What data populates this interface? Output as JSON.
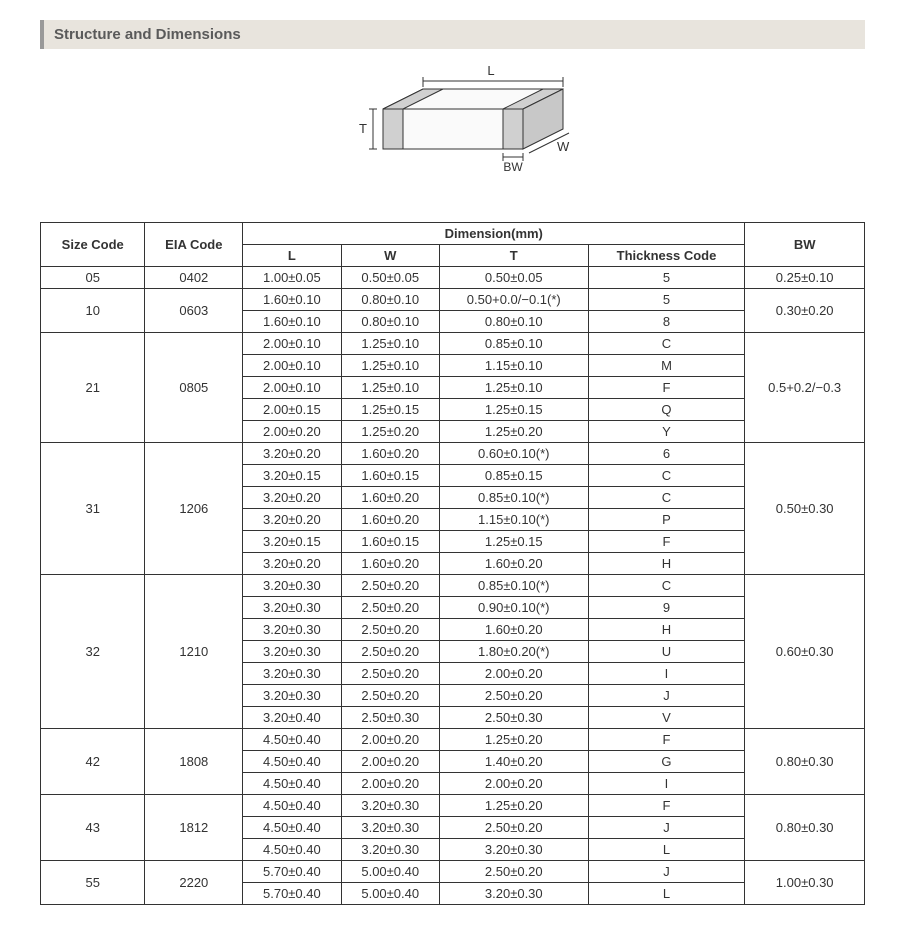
{
  "title": "Structure and Dimensions",
  "diagram": {
    "labels": {
      "L": "L",
      "W": "W",
      "T": "T",
      "BW": "BW"
    },
    "stroke": "#333333",
    "fill": "#fafafa",
    "terminal_fill": "#d0d0d0"
  },
  "table": {
    "header": {
      "size_code": "Size Code",
      "eia_code": "EIA Code",
      "dimension": "Dimension(mm)",
      "L": "L",
      "W": "W",
      "T": "T",
      "thickness_code": "Thickness Code",
      "BW": "BW"
    },
    "groups": [
      {
        "size_code": "05",
        "eia_code": "0402",
        "bw": "0.25±0.10",
        "rows": [
          {
            "L": "1.00±0.05",
            "W": "0.50±0.05",
            "T": "0.50±0.05",
            "tc": "5"
          }
        ]
      },
      {
        "size_code": "10",
        "eia_code": "0603",
        "bw": "0.30±0.20",
        "rows": [
          {
            "L": "1.60±0.10",
            "W": "0.80±0.10",
            "T": "0.50+0.0/−0.1(*)",
            "tc": "5"
          },
          {
            "L": "1.60±0.10",
            "W": "0.80±0.10",
            "T": "0.80±0.10",
            "tc": "8"
          }
        ]
      },
      {
        "size_code": "21",
        "eia_code": "0805",
        "bw": "0.5+0.2/−0.3",
        "rows": [
          {
            "L": "2.00±0.10",
            "W": "1.25±0.10",
            "T": "0.85±0.10",
            "tc": "C"
          },
          {
            "L": "2.00±0.10",
            "W": "1.25±0.10",
            "T": "1.15±0.10",
            "tc": "M"
          },
          {
            "L": "2.00±0.10",
            "W": "1.25±0.10",
            "T": "1.25±0.10",
            "tc": "F"
          },
          {
            "L": "2.00±0.15",
            "W": "1.25±0.15",
            "T": "1.25±0.15",
            "tc": "Q"
          },
          {
            "L": "2.00±0.20",
            "W": "1.25±0.20",
            "T": "1.25±0.20",
            "tc": "Y"
          }
        ]
      },
      {
        "size_code": "31",
        "eia_code": "1206",
        "bw": "0.50±0.30",
        "rows": [
          {
            "L": "3.20±0.20",
            "W": "1.60±0.20",
            "T": "0.60±0.10(*)",
            "tc": "6"
          },
          {
            "L": "3.20±0.15",
            "W": "1.60±0.15",
            "T": "0.85±0.15",
            "tc": "C"
          },
          {
            "L": "3.20±0.20",
            "W": "1.60±0.20",
            "T": "0.85±0.10(*)",
            "tc": "C"
          },
          {
            "L": "3.20±0.20",
            "W": "1.60±0.20",
            "T": "1.15±0.10(*)",
            "tc": "P"
          },
          {
            "L": "3.20±0.15",
            "W": "1.60±0.15",
            "T": "1.25±0.15",
            "tc": "F"
          },
          {
            "L": "3.20±0.20",
            "W": "1.60±0.20",
            "T": "1.60±0.20",
            "tc": "H"
          }
        ]
      },
      {
        "size_code": "32",
        "eia_code": "1210",
        "bw": "0.60±0.30",
        "rows": [
          {
            "L": "3.20±0.30",
            "W": "2.50±0.20",
            "T": "0.85±0.10(*)",
            "tc": "C"
          },
          {
            "L": "3.20±0.30",
            "W": "2.50±0.20",
            "T": "0.90±0.10(*)",
            "tc": "9"
          },
          {
            "L": "3.20±0.30",
            "W": "2.50±0.20",
            "T": "1.60±0.20",
            "tc": "H"
          },
          {
            "L": "3.20±0.30",
            "W": "2.50±0.20",
            "T": "1.80±0.20(*)",
            "tc": "U"
          },
          {
            "L": "3.20±0.30",
            "W": "2.50±0.20",
            "T": "2.00±0.20",
            "tc": "I"
          },
          {
            "L": "3.20±0.30",
            "W": "2.50±0.20",
            "T": "2.50±0.20",
            "tc": "J"
          },
          {
            "L": "3.20±0.40",
            "W": "2.50±0.30",
            "T": "2.50±0.30",
            "tc": "V"
          }
        ]
      },
      {
        "size_code": "42",
        "eia_code": "1808",
        "bw": "0.80±0.30",
        "rows": [
          {
            "L": "4.50±0.40",
            "W": "2.00±0.20",
            "T": "1.25±0.20",
            "tc": "F"
          },
          {
            "L": "4.50±0.40",
            "W": "2.00±0.20",
            "T": "1.40±0.20",
            "tc": "G"
          },
          {
            "L": "4.50±0.40",
            "W": "2.00±0.20",
            "T": "2.00±0.20",
            "tc": "I"
          }
        ]
      },
      {
        "size_code": "43",
        "eia_code": "1812",
        "bw": "0.80±0.30",
        "rows": [
          {
            "L": "4.50±0.40",
            "W": "3.20±0.30",
            "T": "1.25±0.20",
            "tc": "F"
          },
          {
            "L": "4.50±0.40",
            "W": "3.20±0.30",
            "T": "2.50±0.20",
            "tc": "J"
          },
          {
            "L": "4.50±0.40",
            "W": "3.20±0.30",
            "T": "3.20±0.30",
            "tc": "L"
          }
        ]
      },
      {
        "size_code": "55",
        "eia_code": "2220",
        "bw": "1.00±0.30",
        "rows": [
          {
            "L": "5.70±0.40",
            "W": "5.00±0.40",
            "T": "2.50±0.20",
            "tc": "J"
          },
          {
            "L": "5.70±0.40",
            "W": "5.00±0.40",
            "T": "3.20±0.30",
            "tc": "L"
          }
        ]
      }
    ]
  }
}
